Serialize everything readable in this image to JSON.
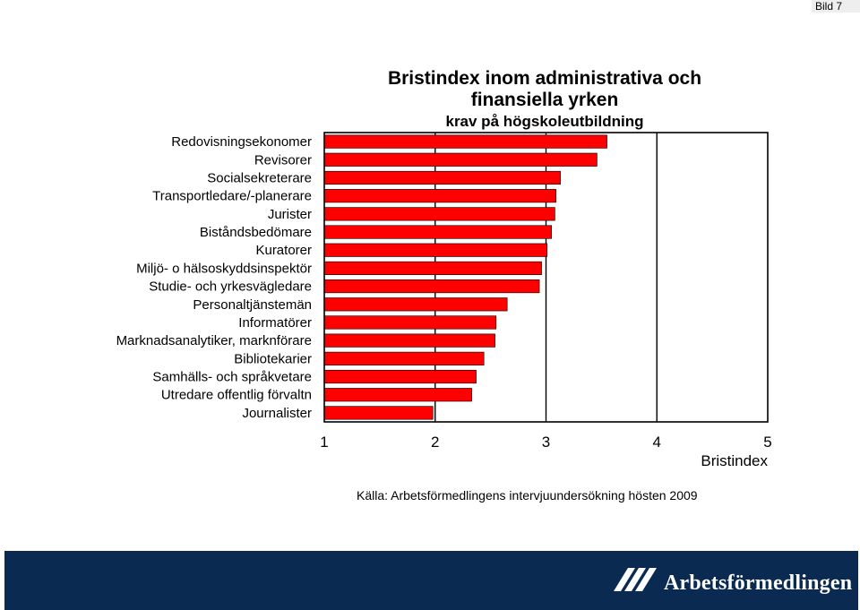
{
  "slide_label": "Bild 7",
  "chart_data": {
    "type": "bar",
    "orientation": "horizontal",
    "title": "Bristindex inom administrativa och finansiella yrken",
    "title_line1": "Bristindex inom administrativa och",
    "title_line2": "finansiella yrken",
    "subtitle": "krav på högskoleutbildning",
    "xlabel": "Bristindex",
    "ylabel": "",
    "xlim": [
      1,
      5
    ],
    "xticks": [
      "1",
      "2",
      "3",
      "4",
      "5"
    ],
    "grid": "vertical",
    "bar_color": "#ff0000",
    "categories": [
      "Redovisningsekonomer",
      "Revisorer",
      "Socialsekreterare",
      "Transportledare/-planerare",
      "Jurister",
      "Biståndsbedömare",
      "Kuratorer",
      "Miljö- o hälsoskyddsinspektör",
      "Studie- och yrkesvägledare",
      "Personaltjänstemän",
      "Informatörer",
      "Marknadsanalytiker, marknförare",
      "Bibliotekarier",
      "Samhälls- och språkvetare",
      "Utredare offentlig förvaltn",
      "Journalister"
    ],
    "values": [
      3.55,
      3.46,
      3.13,
      3.09,
      3.08,
      3.05,
      3.01,
      2.96,
      2.94,
      2.65,
      2.55,
      2.54,
      2.44,
      2.37,
      2.33,
      1.98
    ]
  },
  "source": "Källa: Arbetsförmedlingens intervjuundersökning hösten 2009",
  "logo": {
    "text": "Arbetsförmedlingen"
  }
}
